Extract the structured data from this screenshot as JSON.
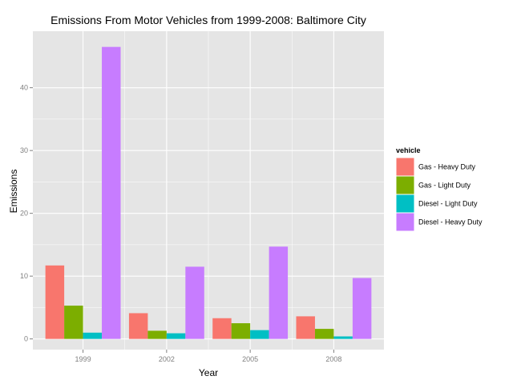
{
  "chart_data": {
    "type": "bar",
    "title": "Emissions From Motor Vehicles from 1999-2008: Baltimore City",
    "xlabel": "Year",
    "ylabel": "Emissions",
    "categories": [
      "1999",
      "2002",
      "2005",
      "2008"
    ],
    "series": [
      {
        "name": "Gas - Heavy Duty",
        "color": "#F8766D",
        "values": [
          11.7,
          4.1,
          3.3,
          3.6
        ]
      },
      {
        "name": "Gas - Light Duty",
        "color": "#7CAE00",
        "values": [
          5.3,
          1.3,
          2.5,
          1.6
        ]
      },
      {
        "name": "Diesel - Light Duty",
        "color": "#00BFC4",
        "values": [
          1.0,
          0.9,
          1.4,
          0.4
        ]
      },
      {
        "name": "Diesel - Heavy Duty",
        "color": "#C77CFF",
        "values": [
          46.5,
          11.5,
          14.7,
          9.7
        ]
      }
    ],
    "ylim": [
      -1.7,
      49.0
    ],
    "yticks": [
      0,
      10,
      20,
      30,
      40
    ],
    "legend": {
      "title": "vehicle",
      "position": "right"
    },
    "grid": true,
    "panel_background": "#E5E5E5",
    "grid_color": "#FFFFFF"
  }
}
